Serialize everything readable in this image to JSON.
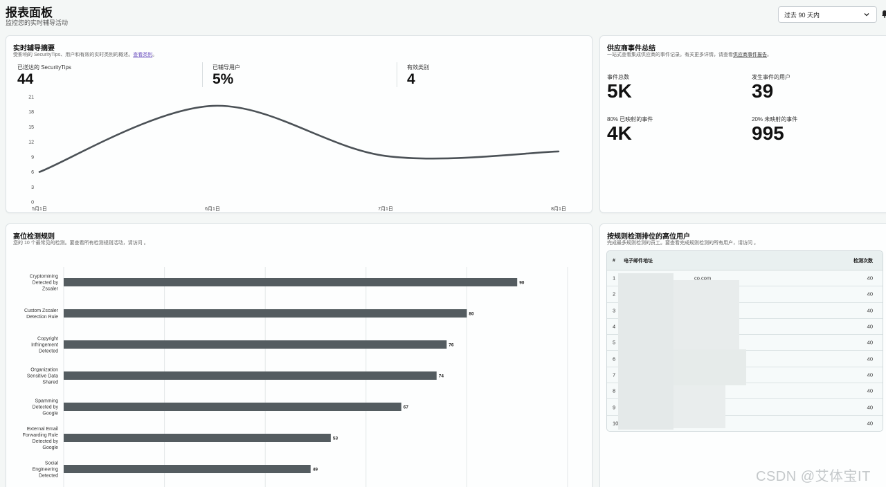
{
  "header": {
    "title": "报表面板",
    "subtitle": "监控您的实时辅导活动",
    "range_select": "过去 90 天内"
  },
  "summary": {
    "title": "实时辅导摘要",
    "subtitle_prefix": "受影响的 SecurityTips、用户和有效的实时类别的概述。",
    "subtitle_link": "查看类别",
    "subtitle_suffix": "。",
    "stats": [
      {
        "label": "已送达的 SecurityTips",
        "value": "44"
      },
      {
        "label": "已辅导用户",
        "value": "5%"
      },
      {
        "label": "有效类别",
        "value": "4"
      }
    ]
  },
  "vendor": {
    "title": "供应商事件总结",
    "subtitle_prefix": "一站式查看集成供应商的事件记录。有关更多详情，请查看",
    "subtitle_link": "供应商事件报告",
    "subtitle_suffix": "。",
    "stats": [
      {
        "label": "事件总数",
        "value": "5K"
      },
      {
        "label": "发生事件的用户",
        "value": "39"
      },
      {
        "label": "80% 已映射的事件",
        "value": "4K"
      },
      {
        "label": "20% 未映射的事件",
        "value": "995"
      }
    ]
  },
  "rules": {
    "title": "高位检测规则",
    "subtitle": "您的 10 个最常见的检测。要查看所有检测规则活动，请访问 。"
  },
  "users": {
    "title": "按规则检测排位的高位用户",
    "subtitle": "完成最多规则检测的员工。要查看完成规则检测的所有用户，请访问 。",
    "columns": {
      "num": "#",
      "email": "电子邮件地址",
      "count": "检测次数"
    },
    "rows": [
      {
        "num": "1",
        "email": "co.com",
        "count": "40"
      },
      {
        "num": "2",
        "email": "",
        "count": "40"
      },
      {
        "num": "3",
        "email": "",
        "count": "40"
      },
      {
        "num": "4",
        "email": "m",
        "count": "40"
      },
      {
        "num": "5",
        "email": "",
        "count": "40"
      },
      {
        "num": "6",
        "email": "",
        "count": "40"
      },
      {
        "num": "7",
        "email": "",
        "count": "40"
      },
      {
        "num": "8",
        "email": "m",
        "count": "40"
      },
      {
        "num": "9",
        "email": "om",
        "count": "40"
      },
      {
        "num": "10",
        "email": "n",
        "count": "40"
      }
    ]
  },
  "watermark": "CSDN @艾体宝IT",
  "chart_data": [
    {
      "type": "line",
      "x_ticks": [
        "5月1日",
        "6月1日",
        "7月1日",
        "8月1日"
      ],
      "x": [
        "5月1日",
        "6月1日",
        "7月1日",
        "8月1日"
      ],
      "series": [
        {
          "values": [
            6,
            19.2,
            9.2,
            10.1
          ]
        }
      ],
      "y_ticks": [
        0,
        3,
        6,
        9,
        12,
        15,
        18,
        21
      ],
      "ylim": [
        0,
        21
      ],
      "grid": false,
      "color": "#4b5156"
    },
    {
      "type": "bar",
      "orientation": "horizontal",
      "categories": [
        [
          "Cryptomining",
          "Detected by",
          "Zscaler"
        ],
        [
          "Custom Zscaler",
          "Detection Rule"
        ],
        [
          "Copyright",
          "Infringement",
          "Detected"
        ],
        [
          "Organization",
          "Sensitive Data",
          "Shared"
        ],
        [
          "Spamming",
          "Detected by",
          "Google"
        ],
        [
          "External Email",
          "Forwarding Rule",
          "Detected by",
          "Google"
        ],
        [
          "Social",
          "Engineering",
          "Detected"
        ]
      ],
      "values": [
        90,
        80,
        76,
        74,
        67,
        53,
        49
      ],
      "xlim": [
        0,
        100
      ],
      "grid": true,
      "color": "#545c60"
    }
  ]
}
